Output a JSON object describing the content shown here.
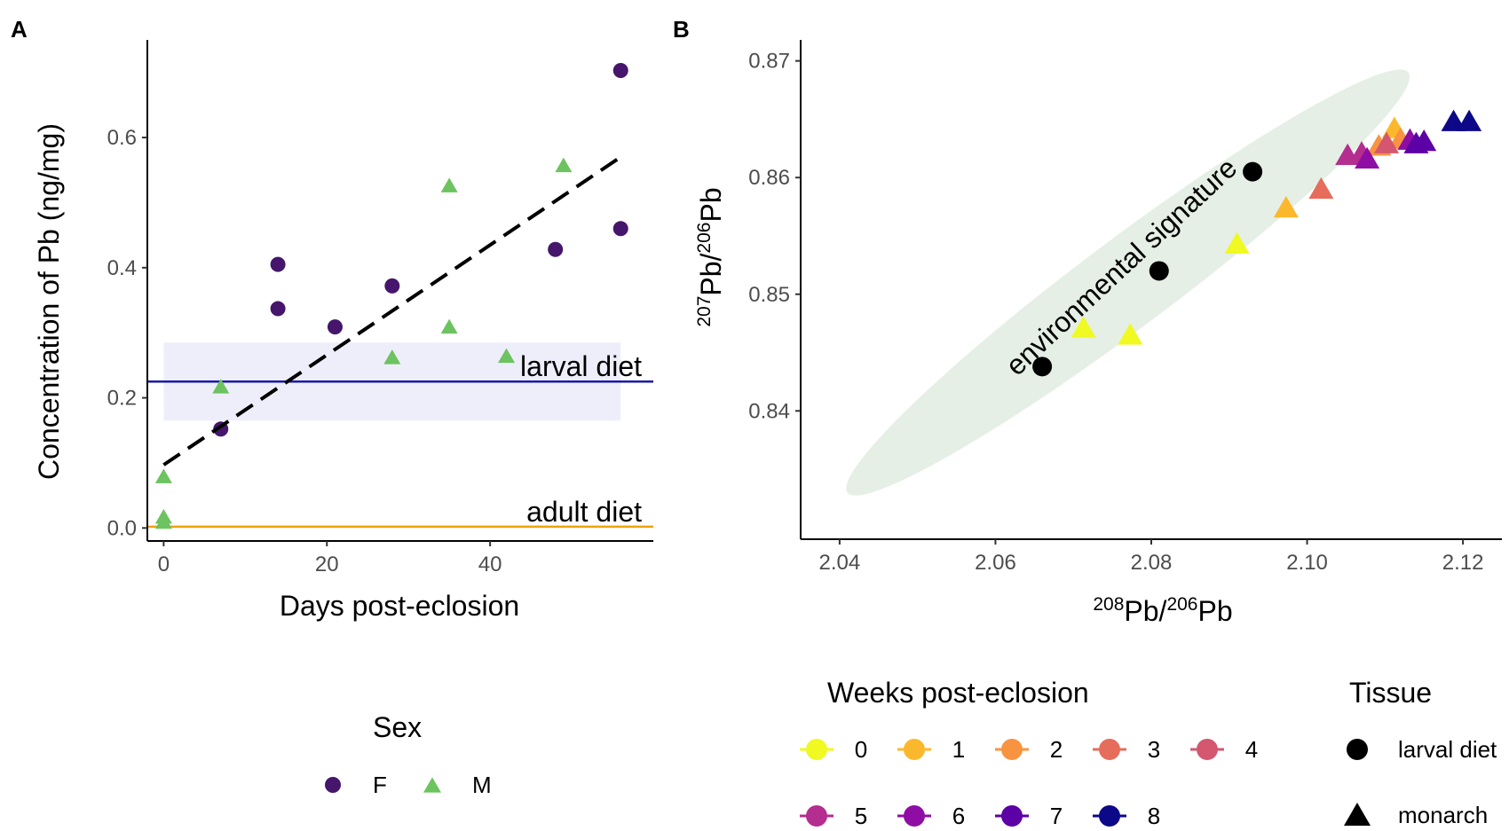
{
  "chart_data": [
    {
      "panel": "A",
      "type": "scatter",
      "xlabel": "Days post-eclosion",
      "ylabel": "Concentration of Pb (ng/mg)",
      "xlim": [
        -2,
        60
      ],
      "ylim": [
        -0.02,
        0.75
      ],
      "xticks": [
        0,
        20,
        40
      ],
      "yticks": [
        0.0,
        0.2,
        0.4,
        0.6
      ],
      "ytick_labels": [
        "0.0",
        "0.2",
        "0.4",
        "0.6"
      ],
      "legend": {
        "title": "Sex",
        "entries": [
          {
            "label": "F",
            "color": "#45166b",
            "shape": "circle"
          },
          {
            "label": "M",
            "color": "#6cc35f",
            "shape": "triangle"
          }
        ]
      },
      "series": [
        {
          "name": "F",
          "shape": "circle",
          "color": "#45166b",
          "x": [
            7,
            14,
            14,
            21,
            28,
            48,
            56,
            56
          ],
          "y": [
            0.152,
            0.405,
            0.337,
            0.309,
            0.372,
            0.428,
            0.46,
            0.703
          ]
        },
        {
          "name": "M",
          "shape": "triangle",
          "color": "#6cc35f",
          "x": [
            0,
            0,
            0,
            7,
            28,
            35,
            35,
            42,
            49
          ],
          "y": [
            0.01,
            0.018,
            0.08,
            0.218,
            0.263,
            0.31,
            0.527,
            0.265,
            0.558
          ]
        }
      ],
      "trendline": {
        "x": [
          0,
          56
        ],
        "y": [
          0.097,
          0.57
        ],
        "style": "dashed",
        "color": "#000000"
      },
      "reference_lines": [
        {
          "label": "larval diet",
          "y": 0.225,
          "color": "#1a1aa8",
          "band": [
            0.165,
            0.285
          ],
          "band_x": [
            0,
            56
          ],
          "band_color": "#eeeefb"
        },
        {
          "label": "adult diet",
          "y": 0.002,
          "color": "#f0a30a"
        }
      ]
    },
    {
      "panel": "B",
      "type": "scatter",
      "xlabel_parts": {
        "sup1": "208",
        "base1": "Pb/",
        "sup2": "206",
        "base2": "Pb"
      },
      "ylabel_parts": {
        "sup1": "207",
        "base1": "Pb/",
        "sup2": "206",
        "base2": "Pb"
      },
      "xlim": [
        2.035,
        2.125
      ],
      "ylim": [
        0.829,
        0.8718
      ],
      "xticks": [
        2.04,
        2.06,
        2.08,
        2.1,
        2.12
      ],
      "xtick_labels": [
        "2.04",
        "2.06",
        "2.08",
        "2.10",
        "2.12"
      ],
      "yticks": [
        0.84,
        0.85,
        0.86,
        0.87
      ],
      "ytick_labels": [
        "0.84",
        "0.85",
        "0.86",
        "0.87"
      ],
      "annotation": {
        "label": "environmental signature",
        "ellipse_fill": "#e5efe5",
        "center": [
          2.077,
          0.851
        ],
        "ellipse_ends": [
          [
            2.041,
            0.833
          ],
          [
            2.113,
            0.869
          ]
        ],
        "semi_minor_px": 50
      },
      "legends": [
        {
          "title": "Weeks post-eclosion",
          "entries": [
            {
              "label": "0",
              "color": "#f0f921"
            },
            {
              "label": "1",
              "color": "#fcb82c"
            },
            {
              "label": "2",
              "color": "#f89441"
            },
            {
              "label": "3",
              "color": "#e66c5c"
            },
            {
              "label": "4",
              "color": "#d4566f"
            },
            {
              "label": "5",
              "color": "#b42e8f"
            },
            {
              "label": "6",
              "color": "#8f0da4"
            },
            {
              "label": "7",
              "color": "#5c01a6"
            },
            {
              "label": "8",
              "color": "#0d0887"
            }
          ]
        },
        {
          "title": "Tissue",
          "entries": [
            {
              "label": "larval diet",
              "shape": "circle",
              "color": "#000000"
            },
            {
              "label": "monarch",
              "shape": "triangle",
              "color": "#000000"
            }
          ]
        }
      ],
      "larval_diet_points": {
        "x": [
          2.066,
          2.081,
          2.093
        ],
        "y": [
          0.8438,
          0.852,
          0.8605
        ]
      },
      "monarch_points": {
        "week": [
          0,
          0,
          0,
          1,
          1,
          2,
          2,
          3,
          4,
          5,
          5,
          6,
          6,
          7,
          7,
          8,
          8
        ],
        "x": [
          2.0713,
          2.0773,
          2.091,
          2.0973,
          2.1112,
          2.1092,
          2.112,
          2.1018,
          2.1102,
          2.1052,
          2.107,
          2.1077,
          2.1132,
          2.114,
          2.115,
          2.1188,
          2.1208
        ],
        "y": [
          0.8472,
          0.8466,
          0.8544,
          0.8575,
          0.8643,
          0.8628,
          0.8634,
          0.8591,
          0.863,
          0.862,
          0.8622,
          0.8617,
          0.8633,
          0.863,
          0.8632,
          0.8649,
          0.8649
        ]
      }
    }
  ]
}
